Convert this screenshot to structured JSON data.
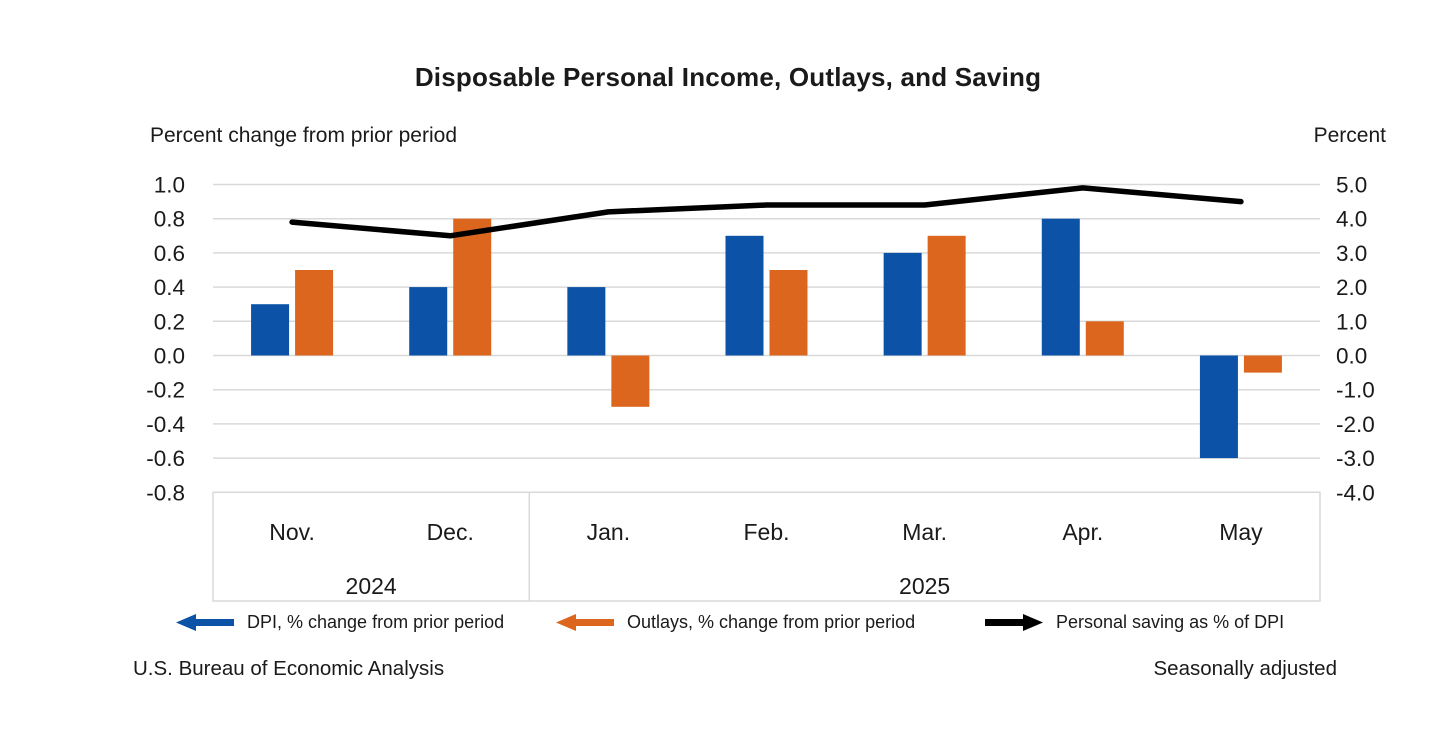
{
  "title": "Disposable Personal Income, Outlays, and Saving",
  "left_axis_title": "Percent change from prior period",
  "right_axis_title": "Percent",
  "footer": {
    "source": "U.S. Bureau of Economic Analysis",
    "note": "Seasonally adjusted"
  },
  "colors": {
    "dpi_blue": "#0C52A6",
    "outlays_orange": "#DD661E",
    "saving_black": "#000000",
    "gridline": "#D9D9D9",
    "text": "#1A1A1A"
  },
  "legend": [
    {
      "swatch": "blue-left-arrow",
      "label": "DPI, % change from prior period"
    },
    {
      "swatch": "orange-left-arrow",
      "label": "Outlays, % change from prior period"
    },
    {
      "swatch": "black-right-arrow",
      "label": "Personal saving as % of DPI"
    }
  ],
  "chart_data": {
    "type": "bar",
    "subtype": "grouped bars with overlaid line",
    "categories": [
      "Nov.",
      "Dec.",
      "Jan.",
      "Feb.",
      "Mar.",
      "Apr.",
      "May"
    ],
    "year_groups": [
      {
        "label": "2024",
        "span": [
          0,
          1
        ]
      },
      {
        "label": "2025",
        "span": [
          2,
          6
        ]
      }
    ],
    "series": [
      {
        "name": "DPI, % change from prior period",
        "type": "bar",
        "axis": "left",
        "values": [
          0.3,
          0.4,
          0.4,
          0.7,
          0.6,
          0.8,
          -0.6
        ]
      },
      {
        "name": "Outlays, % change from prior period",
        "type": "bar",
        "axis": "left",
        "values": [
          0.5,
          0.8,
          -0.3,
          0.5,
          0.7,
          0.2,
          -0.1
        ]
      },
      {
        "name": "Personal saving as % of DPI",
        "type": "line",
        "axis": "right",
        "values": [
          3.9,
          3.5,
          4.2,
          4.4,
          4.4,
          4.9,
          4.5
        ]
      }
    ],
    "left_axis": {
      "min": -0.8,
      "max": 1.0,
      "step": 0.2,
      "ticks": [
        "1.0",
        "0.8",
        "0.6",
        "0.4",
        "0.2",
        "0.0",
        "-0.2",
        "-0.4",
        "-0.6",
        "-0.8"
      ]
    },
    "right_axis": {
      "min": -4.0,
      "max": 5.0,
      "step": 1.0,
      "ticks": [
        "5.0",
        "4.0",
        "3.0",
        "2.0",
        "1.0",
        "0.0",
        "-1.0",
        "-2.0",
        "-3.0",
        "-4.0"
      ]
    },
    "grid": true,
    "legend_position": "bottom"
  }
}
